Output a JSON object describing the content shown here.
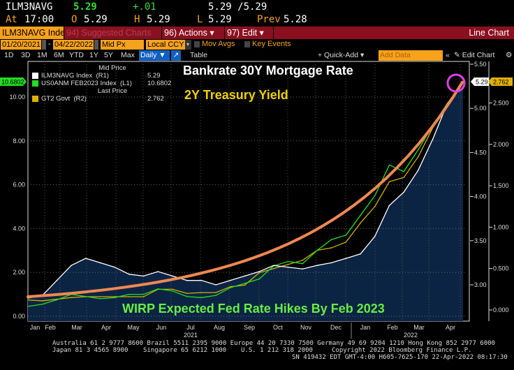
{
  "quote": {
    "ticker": "ILM3NAVG",
    "last": "5.29",
    "change": "+.01",
    "bid_ask": "5.29 /5.29",
    "at_label": "At",
    "time": "17:00",
    "open_label": "O",
    "open": "5.29",
    "high_label": "H",
    "high": "5.29",
    "low_label": "L",
    "low": "5.29",
    "prev_label": "Prev",
    "prev": "5.28"
  },
  "menu": {
    "security": "ILM3NAVG Index",
    "suggested": "94) Suggested Charts",
    "actions": "96) Actions ▾",
    "edit": "97) Edit ▾",
    "chart_type": "Line Chart"
  },
  "range": {
    "start": "01/20/2021",
    "dash": "-",
    "end": "04/22/2022",
    "price": "Mid Px",
    "currency": "Local CCY",
    "mov_avgs": "Mov Avgs",
    "key_events": "Key Events"
  },
  "toolbar": {
    "periods": [
      "1D",
      "3D",
      "1M",
      "6M",
      "YTD",
      "1Y",
      "5Y",
      "Max"
    ],
    "frequency": "Daily ▼",
    "table": "Table",
    "quick_add": "+ Quick-Add ▾",
    "add_data_placeholder": "Add Data",
    "edit_chart": "Edit Chart"
  },
  "legend": {
    "mid_price": "Mid Price",
    "last_price": "Last Price",
    "items": [
      {
        "name": "ILM3NAVG Index  (R1)",
        "value": "5.29",
        "color": "#ffffff"
      },
      {
        "name": "US0ANM FEB2023 Index  (L1)",
        "value": "10.6802",
        "color": "#22dd22"
      },
      {
        "name": "GT2 Govt  (R2)",
        "value": "2.762",
        "color": "#e0b000"
      }
    ]
  },
  "annotations": {
    "mortgage": "Bankrate 30Y Mortgage Rate",
    "treasury": "2Y Treasury Yield",
    "wirp": "WIRP Expected Fed Rate Hikes By Feb 2023"
  },
  "chart_data": {
    "type": "line",
    "title": "",
    "x_unit": "months since 2021-01-01",
    "x": [
      0.65,
      1.15,
      1.65,
      2.15,
      2.65,
      3.15,
      3.65,
      4.15,
      4.65,
      5.15,
      5.65,
      6.15,
      6.65,
      7.15,
      7.65,
      8.15,
      8.65,
      9.15,
      9.65,
      10.15,
      10.65,
      11.15,
      11.65,
      12.15,
      12.65,
      13.15,
      13.65,
      14.15,
      14.65,
      15.15,
      15.7
    ],
    "series": [
      {
        "name": "ILM3NAVG Index",
        "axis": "R1",
        "color": "#ffffff",
        "values": [
          2.85,
          2.88,
          3.05,
          3.22,
          3.3,
          3.25,
          3.2,
          3.12,
          3.1,
          3.15,
          3.1,
          3.05,
          3.05,
          3.0,
          3.05,
          3.1,
          3.15,
          3.22,
          3.2,
          3.18,
          3.22,
          3.25,
          3.3,
          3.35,
          3.55,
          3.9,
          4.05,
          4.3,
          4.65,
          5.05,
          5.29
        ]
      },
      {
        "name": "US0ANM FEB2023 Index",
        "axis": "L1",
        "color": "#22dd22",
        "values": [
          0.45,
          0.55,
          0.75,
          1.0,
          0.9,
          0.8,
          0.85,
          1.0,
          1.0,
          1.25,
          1.15,
          0.9,
          0.85,
          0.95,
          1.3,
          1.5,
          1.7,
          2.3,
          2.5,
          2.4,
          3.0,
          3.5,
          3.7,
          4.6,
          5.5,
          6.9,
          6.6,
          7.6,
          8.7,
          9.7,
          10.68
        ]
      },
      {
        "name": "GT2 Govt",
        "axis": "R2",
        "color": "#d4b000",
        "values": [
          0.12,
          0.11,
          0.13,
          0.15,
          0.16,
          0.16,
          0.16,
          0.16,
          0.16,
          0.25,
          0.25,
          0.2,
          0.21,
          0.21,
          0.28,
          0.3,
          0.45,
          0.5,
          0.55,
          0.6,
          0.72,
          0.75,
          0.82,
          1.05,
          1.25,
          1.55,
          1.6,
          1.85,
          2.2,
          2.45,
          2.762
        ]
      }
    ],
    "left_axis": {
      "ticks": [
        "0.00",
        "2.00",
        "4.00",
        "6.00",
        "8.00",
        "10.00"
      ],
      "range": [
        0,
        10.68
      ],
      "last_label": "10.6802"
    },
    "right_axis_1": {
      "ticks": [
        "3.00",
        "3.50",
        "4.00",
        "4.50",
        "5.00",
        "5.50"
      ],
      "last_label": "5.29"
    },
    "right_axis_2": {
      "ticks": [
        "0.000",
        "0.500",
        "1.000",
        "1.500",
        "2.000",
        "2.500"
      ],
      "last_label": "2.762"
    },
    "x_months": [
      "Jan",
      "Feb",
      "Mar",
      "Apr",
      "May",
      "Jun",
      "Jul",
      "Aug",
      "Sep",
      "Oct",
      "Nov",
      "Dec",
      "Jan",
      "Feb",
      "Mar",
      "Apr"
    ],
    "x_years": [
      "2021",
      "2022"
    ],
    "grid": true
  },
  "footer": {
    "line1": "Australia 61 2 9777 8600 Brazil 5511 2395 9000 Europe 44 20 7330 7500 Germany 49 69 9204 1210 Hong Kong 852 2977 6000",
    "line2a": "Japan 81 3 4565 8900",
    "line2b": "Singapore 65 6212 1000",
    "line2c": "U.S. 1 212 318 2000",
    "line2d": "Copyright 2022 Bloomberg Finance L.P.",
    "line3": "SN 419432 EDT  GMT-4:00 H605-7625-170 22-Apr-2022 08:17:30"
  }
}
